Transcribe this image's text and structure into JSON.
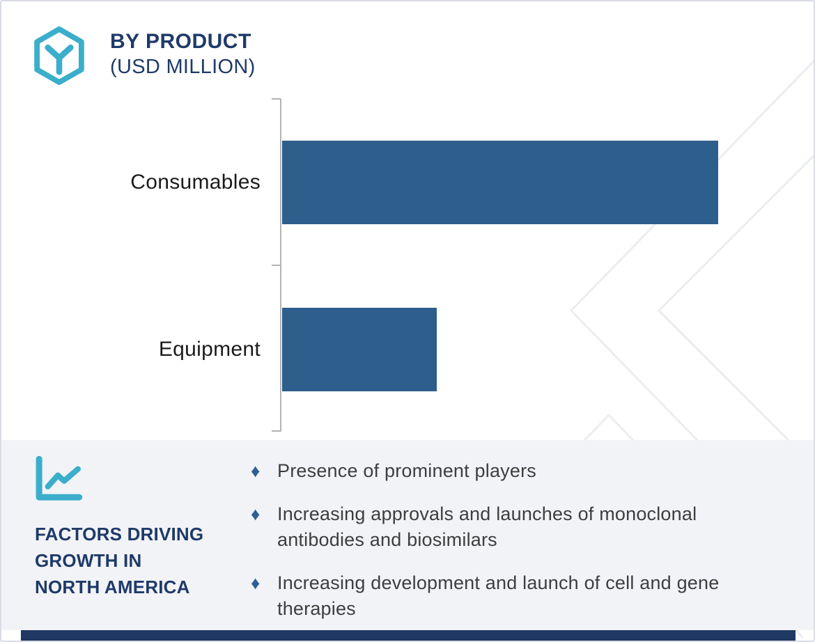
{
  "header": {
    "icon": "hexagon-y-icon",
    "title": "BY PRODUCT",
    "subtitle": "(USD MILLION)"
  },
  "chart_data": {
    "type": "bar",
    "orientation": "horizontal",
    "title": "BY PRODUCT (USD MILLION)",
    "categories": [
      "Consumables",
      "Equipment"
    ],
    "values": [
      626,
      222
    ],
    "value_units": "relative bar lengths in px; no numeric value labels or value-axis ticks are shown in the image",
    "value_ratio_consumables_to_equipment": 2.82,
    "bar_color": "#2E5E8C",
    "axis": {
      "value_axis_labels": "none",
      "category_axis": "vertical line on left with 3 tick marks at band boundaries",
      "axis_color": "#B3B3B3"
    },
    "legend": "none",
    "grid": "off"
  },
  "factors_panel": {
    "icon": "line-chart-icon",
    "heading_lines": [
      "FACTORS DRIVING",
      "GROWTH IN",
      "NORTH AMERICA"
    ],
    "bullet_glyph": "♦",
    "items": [
      {
        "lines": [
          "Presence of prominent players"
        ]
      },
      {
        "lines": [
          "Increasing approvals and launches of monoclonal",
          "antibodies and biosimilars"
        ]
      },
      {
        "lines": [
          "Increasing development and launch of cell and gene",
          "therapies"
        ]
      }
    ]
  },
  "colors": {
    "accent_teal": "#3AAECB",
    "navy_text": "#1F3A68",
    "bar_blue": "#2E5E8C",
    "bullet_blue": "#2D5F94",
    "panel_bg": "#F1F3F7",
    "body_text": "#3E3E3E",
    "axis_gray": "#B3B3B3",
    "watermark_gray": "#ECEDF1",
    "border_gray": "#D9DCE2",
    "footer_navy": "#1F3864"
  }
}
